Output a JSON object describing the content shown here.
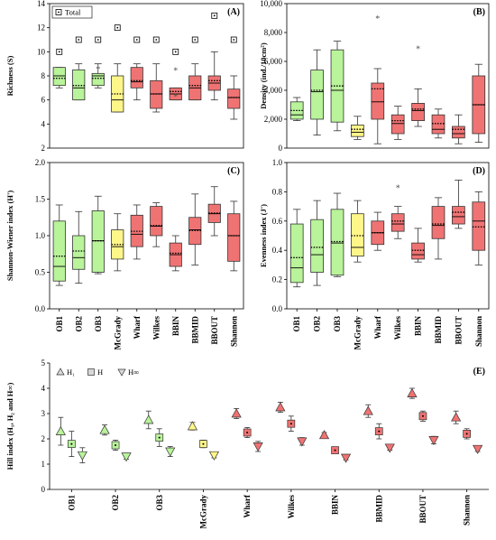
{
  "sites": [
    "OB1",
    "OB2",
    "OB3",
    "McGrady",
    "Wharf",
    "Wilkes",
    "BBIN",
    "BBMID",
    "BBOUT",
    "Shannon"
  ],
  "colors": {
    "green": "#b9f39a",
    "yellow": "#fff68a",
    "red": "#f07373",
    "box_edge": "#333333",
    "whisker": "#333333"
  },
  "chart_data": [
    {
      "type": "box",
      "panel": "(A)",
      "ylabel": "Richness (S)",
      "ylim": [
        2,
        14
      ],
      "yticks": [
        2,
        4,
        6,
        8,
        10,
        12,
        14
      ],
      "legend": {
        "marker": "square-dot",
        "label": "Total",
        "position": "top-left"
      },
      "boxes": [
        {
          "site": "OB1",
          "color": "green",
          "min": 7,
          "q1": 7.2,
          "median": 8,
          "mean": 7.8,
          "q3": 8.7,
          "max": 8.7
        },
        {
          "site": "OB2",
          "color": "green",
          "min": 6,
          "q1": 6,
          "median": 7,
          "mean": 7.2,
          "q3": 8.5,
          "max": 9
        },
        {
          "site": "OB3",
          "color": "green",
          "min": 7,
          "q1": 7.2,
          "median": 8,
          "mean": 7.8,
          "q3": 8.2,
          "max": 9,
          "outliers": [
            8.6
          ]
        },
        {
          "site": "McGrady",
          "color": "yellow",
          "min": 5,
          "q1": 5,
          "median": 6,
          "mean": 6.5,
          "q3": 8,
          "max": 9
        },
        {
          "site": "Wharf",
          "color": "red",
          "min": 6,
          "q1": 7,
          "median": 7.5,
          "mean": 7.6,
          "q3": 8.7,
          "max": 9
        },
        {
          "site": "Wilkes",
          "color": "red",
          "min": 5,
          "q1": 5.3,
          "median": 6.5,
          "mean": 6.5,
          "q3": 7.6,
          "max": 9
        },
        {
          "site": "BBIN",
          "color": "red",
          "min": 6,
          "q1": 6,
          "median": 6.5,
          "mean": 6.7,
          "q3": 7,
          "max": 7,
          "outliers": [
            8.5,
            6.3
          ]
        },
        {
          "site": "BBMID",
          "color": "red",
          "min": 6,
          "q1": 6,
          "median": 7,
          "mean": 7.2,
          "q3": 8,
          "max": 9
        },
        {
          "site": "BBOUT",
          "color": "red",
          "min": 6,
          "q1": 6.8,
          "median": 7.4,
          "mean": 7.6,
          "q3": 8,
          "max": 10
        },
        {
          "site": "Shannon",
          "color": "red",
          "min": 4.4,
          "q1": 5.3,
          "median": 6.2,
          "mean": 6.2,
          "q3": 6.9,
          "max": 8
        }
      ],
      "totals": [
        10,
        11,
        11,
        12,
        11,
        11,
        10,
        11,
        13,
        11
      ]
    },
    {
      "type": "box",
      "panel": "(B)",
      "ylabel": "Density (ind./10cm²)",
      "ylim": [
        0,
        10000
      ],
      "yticks": [
        0,
        2000,
        4000,
        6000,
        8000,
        10000
      ],
      "ytick_labels": [
        "0",
        "2,000",
        "4,000",
        "6,000",
        "8,000",
        "10,000"
      ],
      "boxes": [
        {
          "site": "OB1",
          "color": "green",
          "min": 1900,
          "q1": 2000,
          "median": 2300,
          "mean": 2600,
          "q3": 3200,
          "max": 3500
        },
        {
          "site": "OB2",
          "color": "green",
          "min": 900,
          "q1": 2000,
          "median": 3900,
          "mean": 4000,
          "q3": 5400,
          "max": 6800
        },
        {
          "site": "OB3",
          "color": "green",
          "min": 1200,
          "q1": 1800,
          "median": 4000,
          "mean": 4300,
          "q3": 6800,
          "max": 7400
        },
        {
          "site": "McGrady",
          "color": "yellow",
          "min": 600,
          "q1": 800,
          "median": 1100,
          "mean": 1300,
          "q3": 1600,
          "max": 2200
        },
        {
          "site": "Wharf",
          "color": "red",
          "min": 300,
          "q1": 2000,
          "median": 3200,
          "mean": 4100,
          "q3": 4500,
          "max": 5500,
          "outliers": [
            9000
          ]
        },
        {
          "site": "Wilkes",
          "color": "red",
          "min": 600,
          "q1": 1000,
          "median": 1700,
          "mean": 1900,
          "q3": 2300,
          "max": 2900
        },
        {
          "site": "BBIN",
          "color": "red",
          "min": 1500,
          "q1": 1900,
          "median": 2600,
          "mean": 2700,
          "q3": 3100,
          "max": 4100,
          "outliers": [
            6900
          ]
        },
        {
          "site": "BBMID",
          "color": "red",
          "min": 700,
          "q1": 1000,
          "median": 1300,
          "mean": 1700,
          "q3": 2300,
          "max": 2700
        },
        {
          "site": "BBOUT",
          "color": "red",
          "min": 300,
          "q1": 700,
          "median": 1000,
          "mean": 1300,
          "q3": 1500,
          "max": 2300
        },
        {
          "site": "Shannon",
          "color": "red",
          "min": 400,
          "q1": 1000,
          "median": 3000,
          "mean": 3000,
          "q3": 5000,
          "max": 5800
        }
      ]
    },
    {
      "type": "box",
      "panel": "(C)",
      "ylabel": "Shannon-Wiener index (H')",
      "ylim": [
        0,
        2
      ],
      "yticks": [
        0,
        0.5,
        1,
        1.5,
        2
      ],
      "ytick_labels": [
        "0.0",
        "0.5",
        "1.0",
        "1.5",
        "2.0"
      ],
      "boxes": [
        {
          "site": "OB1",
          "color": "green",
          "min": 0.32,
          "q1": 0.38,
          "median": 0.58,
          "mean": 0.72,
          "q3": 1.2,
          "max": 1.42
        },
        {
          "site": "OB2",
          "color": "green",
          "min": 0.35,
          "q1": 0.54,
          "median": 0.7,
          "mean": 0.79,
          "q3": 1.0,
          "max": 1.33
        },
        {
          "site": "OB3",
          "color": "green",
          "min": 0.48,
          "q1": 0.5,
          "median": 0.93,
          "mean": 0.93,
          "q3": 1.34,
          "max": 1.54
        },
        {
          "site": "McGrady",
          "color": "yellow",
          "min": 0.52,
          "q1": 0.68,
          "median": 0.85,
          "mean": 0.88,
          "q3": 1.08,
          "max": 1.3
        },
        {
          "site": "Wharf",
          "color": "red",
          "min": 0.68,
          "q1": 0.85,
          "median": 1.02,
          "mean": 1.06,
          "q3": 1.28,
          "max": 1.42
        },
        {
          "site": "Wilkes",
          "color": "red",
          "min": 0.85,
          "q1": 1.0,
          "median": 1.13,
          "mean": 1.14,
          "q3": 1.4,
          "max": 1.45
        },
        {
          "site": "BBIN",
          "color": "red",
          "min": 0.52,
          "q1": 0.58,
          "median": 0.74,
          "mean": 0.76,
          "q3": 0.9,
          "max": 1.0
        },
        {
          "site": "BBMID",
          "color": "red",
          "min": 0.6,
          "q1": 0.88,
          "median": 1.08,
          "mean": 1.07,
          "q3": 1.25,
          "max": 1.57
        },
        {
          "site": "BBOUT",
          "color": "red",
          "min": 1.0,
          "q1": 1.18,
          "median": 1.3,
          "mean": 1.31,
          "q3": 1.43,
          "max": 1.67
        },
        {
          "site": "Shannon",
          "color": "red",
          "min": 0.52,
          "q1": 0.65,
          "median": 1.0,
          "mean": 1.0,
          "q3": 1.3,
          "max": 1.47
        }
      ]
    },
    {
      "type": "box",
      "panel": "(D)",
      "ylabel": "Evenness index (J')",
      "ylim": [
        0,
        1
      ],
      "yticks": [
        0,
        0.2,
        0.4,
        0.6,
        0.8,
        1
      ],
      "ytick_labels": [
        "0.0",
        "0.2",
        "0.4",
        "0.6",
        "0.8",
        "1.0"
      ],
      "boxes": [
        {
          "site": "OB1",
          "color": "green",
          "min": 0.15,
          "q1": 0.18,
          "median": 0.28,
          "mean": 0.35,
          "q3": 0.58,
          "max": 0.68
        },
        {
          "site": "OB2",
          "color": "green",
          "min": 0.16,
          "q1": 0.25,
          "median": 0.37,
          "mean": 0.42,
          "q3": 0.61,
          "max": 0.74
        },
        {
          "site": "OB3",
          "color": "green",
          "min": 0.22,
          "q1": 0.23,
          "median": 0.45,
          "mean": 0.46,
          "q3": 0.68,
          "max": 0.79
        },
        {
          "site": "McGrady",
          "color": "yellow",
          "min": 0.32,
          "q1": 0.36,
          "median": 0.42,
          "mean": 0.5,
          "q3": 0.65,
          "max": 0.74
        },
        {
          "site": "Wharf",
          "color": "red",
          "min": 0.4,
          "q1": 0.44,
          "median": 0.52,
          "mean": 0.52,
          "q3": 0.6,
          "max": 0.66
        },
        {
          "site": "Wilkes",
          "color": "red",
          "min": 0.48,
          "q1": 0.53,
          "median": 0.58,
          "mean": 0.6,
          "q3": 0.65,
          "max": 0.7,
          "outliers": [
            0.83
          ]
        },
        {
          "site": "BBIN",
          "color": "red",
          "min": 0.32,
          "q1": 0.34,
          "median": 0.37,
          "mean": 0.4,
          "q3": 0.45,
          "max": 0.55
        },
        {
          "site": "BBMID",
          "color": "red",
          "min": 0.34,
          "q1": 0.48,
          "median": 0.57,
          "mean": 0.58,
          "q3": 0.7,
          "max": 0.76
        },
        {
          "site": "BBOUT",
          "color": "red",
          "min": 0.55,
          "q1": 0.58,
          "median": 0.63,
          "mean": 0.66,
          "q3": 0.7,
          "max": 0.88
        },
        {
          "site": "Shannon",
          "color": "red",
          "min": 0.3,
          "q1": 0.4,
          "median": 0.6,
          "mean": 0.56,
          "q3": 0.73,
          "max": 0.8
        }
      ]
    },
    {
      "type": "scatter",
      "panel": "(E)",
      "ylabel": "Hill index (H₁, H₂ and H∞)",
      "ylim": [
        0,
        5
      ],
      "yticks": [
        0,
        1,
        2,
        3,
        4,
        5
      ],
      "legend": {
        "position": "top-left",
        "entries": [
          {
            "marker": "triangle-up",
            "label": "H₁"
          },
          {
            "marker": "square",
            "label": "H"
          },
          {
            "marker": "triangle-down",
            "label": "H∞"
          }
        ]
      },
      "series": [
        {
          "marker": "triangle-up",
          "values": [
            2.3,
            2.35,
            2.75,
            2.5,
            3.0,
            3.25,
            2.15,
            3.1,
            3.8,
            2.85
          ],
          "errors": [
            0.55,
            0.2,
            0.35,
            0.15,
            0.2,
            0.2,
            0.1,
            0.25,
            0.2,
            0.25
          ]
        },
        {
          "marker": "square",
          "values": [
            1.8,
            1.75,
            2.05,
            1.8,
            2.25,
            2.6,
            1.55,
            2.3,
            2.9,
            2.2
          ],
          "errors": [
            0.5,
            0.2,
            0.35,
            0.15,
            0.2,
            0.3,
            0.1,
            0.3,
            0.2,
            0.2
          ]
        },
        {
          "marker": "triangle-down",
          "values": [
            1.35,
            1.3,
            1.5,
            1.35,
            1.7,
            1.9,
            1.25,
            1.65,
            1.95,
            1.6
          ],
          "errors": [
            0.3,
            0.1,
            0.2,
            0.1,
            0.2,
            0.15,
            0.08,
            0.1,
            0.15,
            0.1
          ]
        }
      ]
    }
  ]
}
